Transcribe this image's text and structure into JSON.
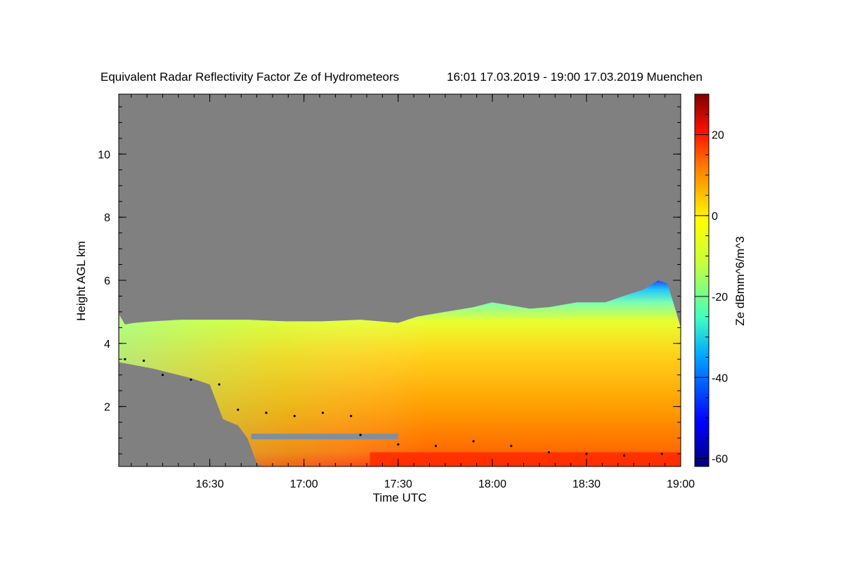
{
  "chart_data": {
    "type": "heatmap",
    "title": "Equivalent Radar Reflectivity Factor Ze of Hydrometeors",
    "time_range_text": "16:01 17.03.2019 - 19:00 17.03.2019 Muenchen",
    "xlabel": "Time UTC",
    "ylabel": "Height AGL km",
    "colorbar_label": "Ze dBmm^6/m^3",
    "x_ticks": [
      {
        "label": "16:30",
        "value": 16.5
      },
      {
        "label": "17:00",
        "value": 17.0
      },
      {
        "label": "17:30",
        "value": 17.5
      },
      {
        "label": "18:00",
        "value": 18.0
      },
      {
        "label": "18:30",
        "value": 18.5
      },
      {
        "label": "19:00",
        "value": 19.0
      }
    ],
    "xlim": [
      16.0167,
      19.0
    ],
    "y_ticks": [
      {
        "label": "2",
        "value": 2
      },
      {
        "label": "4",
        "value": 4
      },
      {
        "label": "6",
        "value": 6
      },
      {
        "label": "8",
        "value": 8
      },
      {
        "label": "10",
        "value": 10
      }
    ],
    "ylim": [
      0.1,
      11.9
    ],
    "colorbar_ticks": [
      {
        "label": "20",
        "value": 20
      },
      {
        "label": "0",
        "value": 0
      },
      {
        "label": "-20",
        "value": -20
      },
      {
        "label": "-40",
        "value": -40
      },
      {
        "label": "-60",
        "value": -60
      }
    ],
    "colorbar_range": [
      -62,
      30
    ],
    "cloud_top_km": [
      [
        16.02,
        4.9
      ],
      [
        16.05,
        4.6
      ],
      [
        16.1,
        4.65
      ],
      [
        16.2,
        4.7
      ],
      [
        16.35,
        4.75
      ],
      [
        16.5,
        4.75
      ],
      [
        16.7,
        4.75
      ],
      [
        16.9,
        4.7
      ],
      [
        17.1,
        4.7
      ],
      [
        17.3,
        4.75
      ],
      [
        17.5,
        4.65
      ],
      [
        17.6,
        4.85
      ],
      [
        17.75,
        5.0
      ],
      [
        17.9,
        5.15
      ],
      [
        18.0,
        5.3
      ],
      [
        18.1,
        5.2
      ],
      [
        18.2,
        5.1
      ],
      [
        18.3,
        5.15
      ],
      [
        18.45,
        5.3
      ],
      [
        18.6,
        5.3
      ],
      [
        18.72,
        5.55
      ],
      [
        18.8,
        5.7
      ],
      [
        18.88,
        6.0
      ],
      [
        18.93,
        5.9
      ],
      [
        18.97,
        5.1
      ],
      [
        19.0,
        4.5
      ]
    ],
    "lower_gap_boundary_km": [
      [
        16.02,
        3.4
      ],
      [
        16.2,
        3.2
      ],
      [
        16.4,
        2.9
      ],
      [
        16.5,
        2.7
      ],
      [
        16.57,
        1.6
      ],
      [
        16.65,
        1.4
      ],
      [
        16.7,
        1.0
      ],
      [
        16.75,
        0.2
      ],
      [
        16.78,
        0.1
      ]
    ],
    "cloud_base_points_km": [
      [
        16.05,
        3.5
      ],
      [
        16.15,
        3.45
      ],
      [
        16.25,
        3.0
      ],
      [
        16.4,
        2.85
      ],
      [
        16.55,
        2.7
      ],
      [
        16.65,
        1.9
      ],
      [
        16.8,
        1.8
      ],
      [
        16.95,
        1.7
      ],
      [
        17.1,
        1.8
      ],
      [
        17.25,
        1.7
      ],
      [
        17.3,
        1.1
      ],
      [
        17.5,
        0.8
      ],
      [
        17.7,
        0.75
      ],
      [
        17.9,
        0.9
      ],
      [
        18.1,
        0.75
      ],
      [
        18.3,
        0.55
      ],
      [
        18.5,
        0.5
      ],
      [
        18.7,
        0.45
      ],
      [
        18.9,
        0.5
      ]
    ],
    "melting_layer": {
      "start_time": 16.72,
      "end_time": 17.5,
      "height_km": 1.05
    }
  }
}
